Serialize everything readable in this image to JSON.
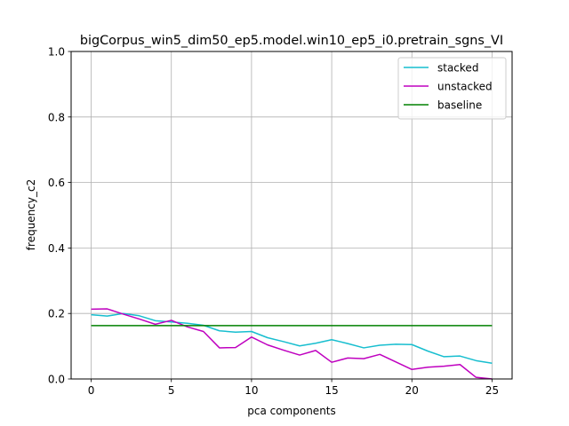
{
  "chart_data": {
    "type": "line",
    "title": "bigCorpus_win5_dim50_ep5.model.win10_ep5_i0.pretrain_sgns_VI",
    "xlabel": "pca components",
    "ylabel": "frequency_c2",
    "xlim": [
      -1.25,
      26.25
    ],
    "ylim": [
      0,
      1.0
    ],
    "xticks": [
      0,
      5,
      10,
      15,
      20,
      25
    ],
    "xtick_labels": [
      "0",
      "5",
      "10",
      "15",
      "20",
      "25"
    ],
    "yticks": [
      0.0,
      0.2,
      0.4,
      0.6,
      0.8,
      1.0
    ],
    "ytick_labels": [
      "0.0",
      "0.2",
      "0.4",
      "0.6",
      "0.8",
      "1.0"
    ],
    "grid": true,
    "legend_position": "upper right",
    "x": [
      0,
      1,
      2,
      3,
      4,
      5,
      6,
      7,
      8,
      9,
      10,
      11,
      12,
      13,
      14,
      15,
      16,
      17,
      18,
      19,
      20,
      21,
      22,
      23,
      24,
      25
    ],
    "series": [
      {
        "name": "stacked",
        "color": "#17becf",
        "values": [
          0.196,
          0.192,
          0.2,
          0.193,
          0.178,
          0.174,
          0.17,
          0.164,
          0.147,
          0.143,
          0.145,
          0.126,
          0.114,
          0.101,
          0.109,
          0.12,
          0.108,
          0.095,
          0.103,
          0.106,
          0.105,
          0.085,
          0.068,
          0.07,
          0.056,
          0.048
        ]
      },
      {
        "name": "unstacked",
        "color": "#bf00bf",
        "values": [
          0.213,
          0.214,
          0.198,
          0.183,
          0.167,
          0.179,
          0.159,
          0.145,
          0.095,
          0.096,
          0.128,
          0.104,
          0.088,
          0.073,
          0.087,
          0.051,
          0.064,
          0.062,
          0.075,
          0.052,
          0.029,
          0.036,
          0.039,
          0.044,
          0.005,
          0.0
        ]
      },
      {
        "name": "baseline",
        "color": "#008000",
        "values": [
          0.163,
          0.163,
          0.163,
          0.163,
          0.163,
          0.163,
          0.163,
          0.163,
          0.163,
          0.163,
          0.163,
          0.163,
          0.163,
          0.163,
          0.163,
          0.163,
          0.163,
          0.163,
          0.163,
          0.163,
          0.163,
          0.163,
          0.163,
          0.163,
          0.163,
          0.163
        ]
      }
    ]
  }
}
